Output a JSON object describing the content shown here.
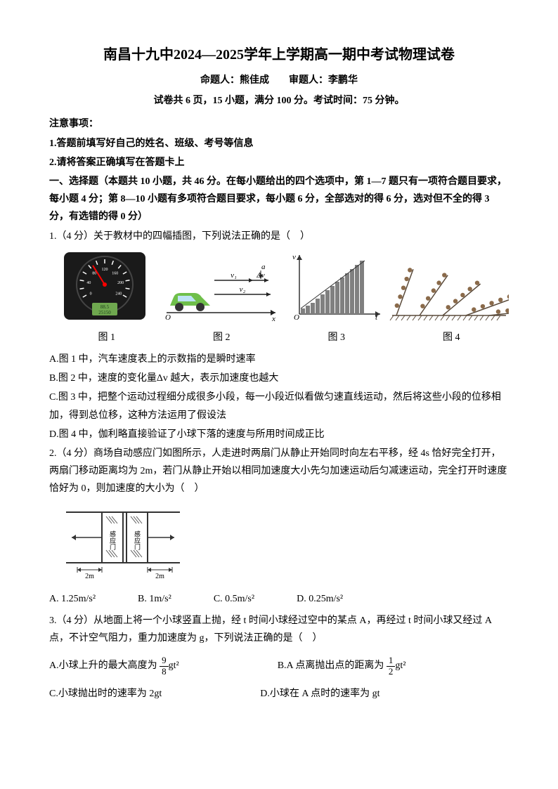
{
  "header": {
    "title": "南昌十九中2024—2025学年上学期高一期中考试物理试卷",
    "authors": "命题人：熊佳成　　审题人：李鹏华",
    "examinfo": "试卷共 6 页，15 小题，满分 100 分。考试时间：75 分钟。"
  },
  "notices": {
    "heading": "注意事项：",
    "n1": "1.答题前填写好自己的姓名、班级、考号等信息",
    "n2": "2.请将答案正确填写在答题卡上"
  },
  "section1": "一、选择题（本题共 10 小题，共 46 分。在每小题给出的四个选项中，第 1—7 题只有一项符合题目要求，每小题 4 分；第 8—10 小题有多项符合题目要求，每小题 6 分，全部选对的得 6 分，选对但不全的得 3 分，有选错的得 0 分）",
  "q1": {
    "stem": "1.（4 分）关于教材中的四幅插图，下列说法正确的是（　）",
    "caps": {
      "c1": "图 1",
      "c2": "图 2",
      "c3": "图 3",
      "c4": "图 4"
    },
    "A": "A.图 1 中，汽车速度表上的示数指的是瞬时速率",
    "B": "B.图 2 中，速度的变化量Δv 越大，表示加速度也越大",
    "C": "C.图 3 中，把整个运动过程细分成很多小段，每一小段近似看做匀速直线运动，然后将这些小段的位移相加，得到总位移，这种方法运用了假设法",
    "D": "D.图 4 中，伽利略直接验证了小球下落的速度与所用时间成正比",
    "fig1": {
      "bg": "#1a1a1a",
      "dial_bg": "#1a1a1a",
      "needle": "#ff0000",
      "tick": "#ffffff",
      "lcd_bg": "#6fa84f",
      "lcd_text": "#1a3a1a",
      "lcd1": "88.5",
      "lcd2": "25150"
    },
    "fig2": {
      "car_body": "#6fbf4a",
      "car_window": "#bde3f5",
      "wheel": "#333333",
      "arrow": "#222222",
      "labels": {
        "a": "a",
        "v1": "v₁",
        "dv": "Δv",
        "v2": "v₂",
        "O": "O",
        "x": "x"
      }
    },
    "fig3": {
      "axis": "#333333",
      "bar_fill": "#808080",
      "labels": {
        "v": "v",
        "O": "O",
        "t": "t"
      },
      "bars": [
        8,
        12,
        16,
        22,
        28,
        34,
        40,
        46,
        52,
        58,
        64,
        70,
        76
      ]
    },
    "fig4": {
      "line": "#5a4a3a",
      "ball": "#8a6a4a",
      "angles": [
        70,
        55,
        40,
        20,
        6
      ]
    }
  },
  "q2": {
    "stem": "2.（4 分）商场自动感应门如图所示，人走进时两扇门从静止开始同时向左右平移，经 4s 恰好完全打开，两扇门移动距离均为 2m，若门从静止开始以相同加速度大小先匀加速运动后匀减速运动，完全打开时速度恰好为 0，则加速度的大小为（　）",
    "opts": {
      "A": "A. 1.25m/s²",
      "B": "B. 1m/s²",
      "C": "C. 0.5m/s²",
      "D": "D. 0.25m/s²"
    },
    "fig": {
      "frame": "#333333",
      "glass": "#ffffff",
      "hatch": "#555555",
      "label_door": "感应门",
      "label_2m": "2m",
      "arrow": "#333333"
    }
  },
  "q3": {
    "stem": "3.（4 分）从地面上将一个小球竖直上抛，经 t 时间小球经过空中的某点 A，再经过 t 时间小球又经过 A 点，不计空气阻力，重力加速度为 g，下列说法正确的是（　）",
    "A_pre": "A.小球上升的最大高度为",
    "A_num": "9",
    "A_den": "8",
    "A_post": "gt²",
    "B_pre": "B.A 点离抛出点的距离为",
    "B_num": "1",
    "B_den": "2",
    "B_post": "gt²",
    "C": "C.小球抛出时的速率为 2gt",
    "D": "D.小球在 A 点时的速率为 gt"
  }
}
